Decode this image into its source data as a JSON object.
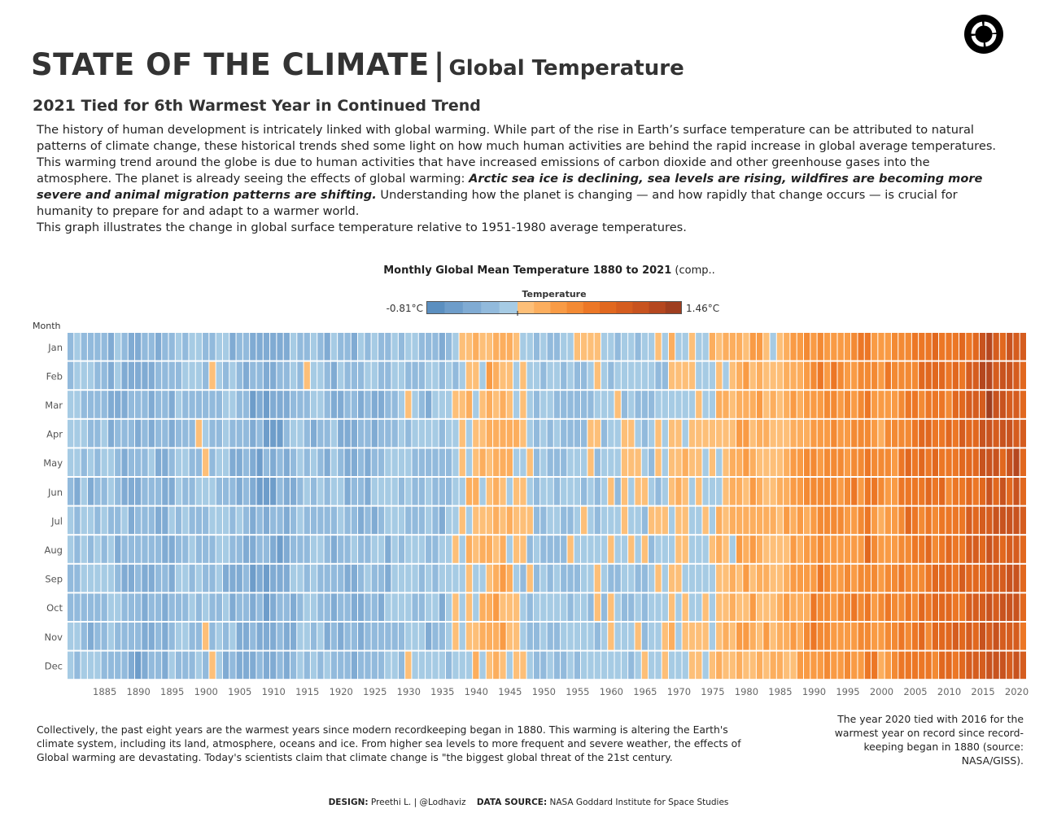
{
  "header": {
    "title_main": "STATE OF THE CLIMATE",
    "title_sep": "|",
    "title_sub": "Global Temperature",
    "subtitle": "2021 Tied for 6th Warmest Year in Continued Trend",
    "logo_icon": "ring-logo-icon"
  },
  "intro": {
    "p1": "The history of human development is intricately linked with global warming. While part of the rise in Earth’s surface temperature can be attributed to natural patterns of climate change, these historical trends shed some light on how much human activities are behind the rapid increase in global average temperatures.",
    "p2_start": "This warming trend around the globe is due to human activities that have increased emissions of carbon dioxide and other greenhouse gases into the atmosphere. The planet is already seeing the effects of global warming: ",
    "p2_bold": "Arctic sea ice is declining, sea levels are rising, wildfires are becoming more severe and animal migration patterns are shifting.",
    "p2_end": " Understanding how the planet is changing — and how rapidly that change occurs — is crucial for humanity to prepare for and adapt to a warmer world.",
    "p3": "This graph illustrates the change in global surface temperature relative to 1951-1980 average temperatures."
  },
  "chart_title": {
    "bold": "Monthly Global Mean Temperature 1880 to 2021",
    "rest": " (comp.."
  },
  "legend": {
    "title": "Temperature",
    "min_label": "-0.81°C",
    "max_label": "1.46°C"
  },
  "notes": {
    "left": "Collectively, the past eight years are the warmest years since modern recordkeeping began in 1880. This warming is altering the Earth's climate system, including its land, atmosphere, oceans and ice. From higher sea levels to more frequent and severe weather, the effects of Global warming are devastating. Today's scientists claim that climate change is \"the biggest global threat of the 21st century.",
    "right": "The year 2020 tied with 2016 for the warmest year on record since record-keeping began in 1880 (source: NASA/GISS)."
  },
  "credits": {
    "design_label": "DESIGN:",
    "design_value": " Preethi L. | @Lodhaviz",
    "source_label": "DATA SOURCE:",
    "source_value": " NASA Goddard Institute for Space Studies"
  },
  "colors": {
    "cold_stops": [
      "#5b8fc0",
      "#6e9dca",
      "#80abd3",
      "#92badc",
      "#a6cbe4"
    ],
    "warm_stops": [
      "#fdbf78",
      "#fcae5e",
      "#f99b45",
      "#f38a34",
      "#ec7726",
      "#e1681f",
      "#d55d1f",
      "#c8531f",
      "#b5471f",
      "#9f3e1f"
    ]
  },
  "chart_data": {
    "type": "heatmap",
    "x_field": "Year",
    "y_field": "Month",
    "y_header": "Month",
    "x_range": [
      1880,
      2021
    ],
    "x_tick_labels": [
      "1885",
      "1890",
      "1895",
      "1900",
      "1905",
      "1910",
      "1915",
      "1920",
      "1925",
      "1930",
      "1935",
      "1940",
      "1945",
      "1950",
      "1955",
      "1960",
      "1965",
      "1970",
      "1975",
      "1980",
      "1985",
      "1990",
      "1995",
      "2000",
      "2005",
      "2010",
      "2015",
      "2020"
    ],
    "months": [
      "Jan",
      "Feb",
      "Mar",
      "Apr",
      "May",
      "Jun",
      "Jul",
      "Aug",
      "Sep",
      "Oct",
      "Nov",
      "Dec"
    ],
    "color_field": "Temperature anomaly (°C, relative to 1951-1980)",
    "color_range": [
      -0.81,
      1.46
    ],
    "color_midpoint": 0,
    "yearly_mean_anomaly": [
      {
        "year": 1880,
        "value": -0.17
      },
      {
        "year": 1885,
        "value": -0.21
      },
      {
        "year": 1890,
        "value": -0.36
      },
      {
        "year": 1895,
        "value": -0.23
      },
      {
        "year": 1900,
        "value": -0.08
      },
      {
        "year": 1905,
        "value": -0.28
      },
      {
        "year": 1910,
        "value": -0.44
      },
      {
        "year": 1915,
        "value": -0.15
      },
      {
        "year": 1920,
        "value": -0.27
      },
      {
        "year": 1925,
        "value": -0.22
      },
      {
        "year": 1930,
        "value": -0.14
      },
      {
        "year": 1935,
        "value": -0.2
      },
      {
        "year": 1940,
        "value": 0.12
      },
      {
        "year": 1944,
        "value": 0.2
      },
      {
        "year": 1945,
        "value": 0.09
      },
      {
        "year": 1950,
        "value": -0.17
      },
      {
        "year": 1955,
        "value": -0.14
      },
      {
        "year": 1960,
        "value": -0.03
      },
      {
        "year": 1965,
        "value": -0.1
      },
      {
        "year": 1970,
        "value": 0.03
      },
      {
        "year": 1975,
        "value": -0.01
      },
      {
        "year": 1980,
        "value": 0.26
      },
      {
        "year": 1985,
        "value": 0.12
      },
      {
        "year": 1990,
        "value": 0.45
      },
      {
        "year": 1995,
        "value": 0.45
      },
      {
        "year": 1998,
        "value": 0.61
      },
      {
        "year": 2000,
        "value": 0.4
      },
      {
        "year": 2005,
        "value": 0.68
      },
      {
        "year": 2010,
        "value": 0.72
      },
      {
        "year": 2015,
        "value": 0.9
      },
      {
        "year": 2016,
        "value": 1.01
      },
      {
        "year": 2020,
        "value": 1.02
      },
      {
        "year": 2021,
        "value": 0.85
      }
    ],
    "annotations": [
      "The year 2020 tied with 2016 for the warmest year on record since record-keeping began in 1880 (source: NASA/GISS)."
    ]
  }
}
